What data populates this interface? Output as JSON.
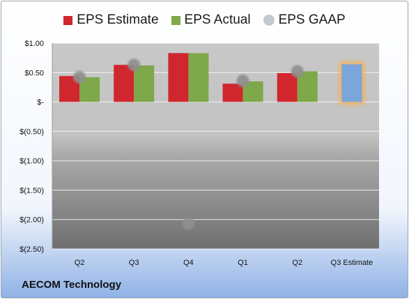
{
  "chart_data": {
    "type": "bar",
    "categories": [
      "Q2",
      "Q3",
      "Q4",
      "Q1",
      "Q2",
      "Q3 Estimate"
    ],
    "series": [
      {
        "name": "EPS Estimate",
        "color": "#d0262d",
        "values": [
          0.44,
          0.63,
          0.83,
          0.31,
          0.49,
          null
        ]
      },
      {
        "name": "EPS Actual",
        "color": "#7ea84a",
        "values": [
          0.42,
          0.62,
          0.83,
          0.35,
          0.52,
          null
        ]
      },
      {
        "name": "EPS GAAP",
        "color": "#b9bec6",
        "values": [
          0.42,
          0.63,
          -2.07,
          0.36,
          0.52,
          null
        ]
      }
    ],
    "estimate_value": 0.64,
    "estimate_color": "#7aa6dc",
    "estimate_glow": "#f2b25c",
    "ylim": [
      -2.5,
      1.0
    ],
    "yticks": [
      1.0,
      0.5,
      0,
      -0.5,
      -1.0,
      -1.5,
      -2.0,
      -2.5
    ],
    "ytick_labels": [
      "$1.00",
      "$0.50",
      "$-",
      "$(0.50)",
      "$(1.00)",
      "$(1.50)",
      "$(2.00)",
      "$(2.50)"
    ],
    "title": "",
    "xlabel": "",
    "ylabel": "",
    "grid": true,
    "legend_position": "top"
  },
  "company": "AECOM Technology"
}
